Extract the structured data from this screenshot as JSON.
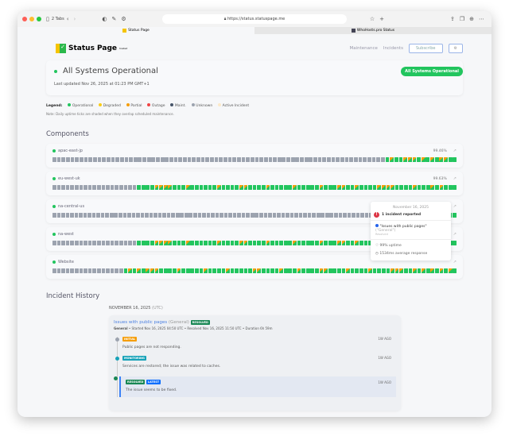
{
  "browser": {
    "tabs_count": "2 Tabs",
    "url": "https://status.statuspage.me",
    "tabs": [
      {
        "label": "Status Page",
        "active": true
      },
      {
        "label": "WhoHosts.pro Status",
        "active": false
      }
    ]
  },
  "header": {
    "logo_text": "Status Page",
    "logo_sup": "hosted",
    "nav": [
      "Maintenance",
      "Incidents"
    ],
    "subscribe": "Subscribe",
    "settings_icon": "gear-icon"
  },
  "hero": {
    "title": "All Systems Operational",
    "updated": "Last updated Nov 26, 2025 at 01:23 PM GMT+1",
    "badge": "All Systems Operational"
  },
  "legend": {
    "label": "Legend:",
    "items": [
      {
        "label": "Operational",
        "color": "#22c55e"
      },
      {
        "label": "Degraded",
        "color": "#facc15"
      },
      {
        "label": "Partial",
        "color": "#f59e0b"
      },
      {
        "label": "Outage",
        "color": "#ef4444"
      },
      {
        "label": "Maint.",
        "color": "#475569"
      },
      {
        "label": "Unknown",
        "color": "#9ca3af"
      },
      {
        "label": "Active Incident",
        "color": "#fde9c8"
      }
    ],
    "note": "Note: Daily uptime ticks are shaded when they overlap scheduled maintenance."
  },
  "components": {
    "title": "Components",
    "items": [
      {
        "name": "apac-east-jp",
        "uptime": "99.46%",
        "ticks": "uuuuuuuuuuuuuuuuuuuuuuuuuuuuuuuuuuuuuuuuuuuuuuuuuuuuuuuuuuuuuuuuuuuuuuuuuuopoopppopopoppoo"
      },
      {
        "name": "eu-west-uk",
        "uptime": "99.63%",
        "ticks": "uuuuuuuuuuuuuuuuuuuooooppppooopoooooopooooppoooopooooopooooopoooppoopooooppppoooopooopopooo"
      },
      {
        "name": "na-central-us",
        "uptime": "",
        "ticks": "uuuuuuuuuuuuuuuuuuuuuuuuuuuuuuuuuuuuuuuuuuuuuuuuuuuuuuuuuuuuuuuuuuuuuuuuuuuuuuuuuuuuuuuuuuoo"
      },
      {
        "name": "na-west",
        "uptime": "",
        "ticks": "uuuuuuuuuuuuuuuuuuuooooppppooopoooooopooooppoooopooooopooooopoooppoopooooppppoooopooopopooo"
      },
      {
        "name": "Website",
        "uptime": "",
        "ticks": "uuuuuuuuuuuuuuuuopopopppoooopooooopoooopoooooppoooopooopooooppoooopoooopoooopppoopopopopopo"
      }
    ],
    "colors": {
      "o": "#22c55e",
      "p": "#f59e0b",
      "u": "#9ca3af"
    }
  },
  "tooltip": {
    "date": "November 16, 2025",
    "incidents": "1 incident reported",
    "incident_title": "\"Issues with public pages\"",
    "incident_group": "(\"General\")",
    "incident_status": "Resolved",
    "uptime": "99% uptime",
    "response": "1534ms average response"
  },
  "history": {
    "title": "Incident History",
    "date": "NOVEMBER 16, 2025",
    "tz": "(UTC)",
    "incident": {
      "title": "Issues with public pages",
      "group": "(General)",
      "status": "RESOLVED",
      "meta_group": "General",
      "meta": " • Started Nov 16, 2025 04:50 UTC • Resolved Nov 16, 2025 11:50 UTC • Duration 6h 59m",
      "updates": [
        {
          "badge": "INITIAL",
          "color": "#f59e0b",
          "dot": "#9ca3af",
          "text": "Public pages are not responding.",
          "ago": "1W AGO"
        },
        {
          "badge": "MONITORING",
          "color": "#17a2b8",
          "dot": "#17a2b8",
          "text": "Services are restored; the issue was related to caches.",
          "ago": "1W AGO"
        },
        {
          "badge": "RESOLVED",
          "badge2": "LATEST",
          "color": "#198754",
          "dot": "#198754",
          "text": "The issue seems to be fixed.",
          "ago": "1W AGO"
        }
      ]
    }
  }
}
